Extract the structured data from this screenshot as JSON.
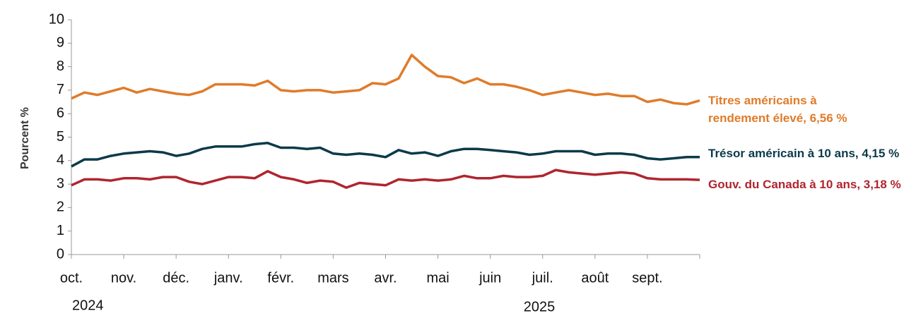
{
  "chart_data": {
    "type": "line",
    "y_label": "Pourcent %",
    "categories": [
      "oct.",
      null,
      null,
      null,
      "nov.",
      null,
      null,
      null,
      "déc.",
      null,
      null,
      null,
      "janv.",
      null,
      null,
      null,
      "févr.",
      null,
      null,
      null,
      "mars",
      null,
      null,
      null,
      "avr.",
      null,
      null,
      null,
      "mai",
      null,
      null,
      null,
      "juin",
      null,
      null,
      null,
      "juil.",
      null,
      null,
      null,
      "août",
      null,
      null,
      null,
      "sept.",
      null,
      null,
      null,
      null
    ],
    "year_labels": [
      "2024",
      "2025"
    ],
    "ylim": [
      0,
      10
    ],
    "yticks": [
      0,
      1,
      2,
      3,
      4,
      5,
      6,
      7,
      8,
      9,
      10
    ],
    "series": [
      {
        "name": "Titres américains à rendement élevé, 6,56 %",
        "color": "#e07b2a",
        "values": [
          6.65,
          6.9,
          6.8,
          6.95,
          7.1,
          6.9,
          7.05,
          6.95,
          6.85,
          6.8,
          6.95,
          7.25,
          7.25,
          7.25,
          7.2,
          7.4,
          7.0,
          6.95,
          7.0,
          7.0,
          6.9,
          6.95,
          7.0,
          7.3,
          7.25,
          7.5,
          8.5,
          8.0,
          7.6,
          7.55,
          7.3,
          7.5,
          7.25,
          7.25,
          7.15,
          7.0,
          6.8,
          6.9,
          7.0,
          6.9,
          6.8,
          6.85,
          6.75,
          6.75,
          6.5,
          6.6,
          6.45,
          6.4,
          6.56
        ]
      },
      {
        "name": "Trésor américain à 10 ans, 4,15 %",
        "color": "#0b3a4a",
        "values": [
          3.75,
          4.05,
          4.05,
          4.2,
          4.3,
          4.35,
          4.4,
          4.35,
          4.2,
          4.3,
          4.5,
          4.6,
          4.6,
          4.6,
          4.7,
          4.75,
          4.55,
          4.55,
          4.5,
          4.55,
          4.3,
          4.25,
          4.3,
          4.25,
          4.15,
          4.45,
          4.3,
          4.35,
          4.2,
          4.4,
          4.5,
          4.5,
          4.45,
          4.4,
          4.35,
          4.25,
          4.3,
          4.4,
          4.4,
          4.4,
          4.25,
          4.3,
          4.3,
          4.25,
          4.1,
          4.05,
          4.1,
          4.15,
          4.15
        ]
      },
      {
        "name": "Gouv. du Canada à 10 ans, 3,18 %",
        "color": "#b0252e",
        "values": [
          2.95,
          3.2,
          3.2,
          3.15,
          3.25,
          3.25,
          3.2,
          3.3,
          3.3,
          3.1,
          3.0,
          3.15,
          3.3,
          3.3,
          3.25,
          3.55,
          3.3,
          3.2,
          3.05,
          3.15,
          3.1,
          2.85,
          3.05,
          3.0,
          2.95,
          3.2,
          3.15,
          3.2,
          3.15,
          3.2,
          3.35,
          3.25,
          3.25,
          3.35,
          3.3,
          3.3,
          3.35,
          3.6,
          3.5,
          3.45,
          3.4,
          3.45,
          3.5,
          3.45,
          3.25,
          3.2,
          3.2,
          3.2,
          3.18
        ]
      }
    ]
  }
}
